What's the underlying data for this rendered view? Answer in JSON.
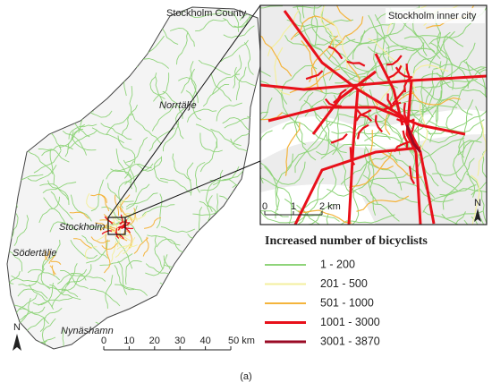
{
  "map": {
    "labels": {
      "county": "Stockholm County",
      "norrtalje": "Norrtälje",
      "stockholm": "Stockholm",
      "sodertalje": "Södertälje",
      "nynashamn": "Nynäshamn",
      "inset": "Stockholm inner city",
      "north": "N",
      "inset_north": "N"
    },
    "inset_scale": [
      "0",
      "1",
      "2 km"
    ],
    "scale": [
      "0",
      "10",
      "20",
      "30",
      "40",
      "50 km"
    ],
    "legend": {
      "title": "Increased number of bicyclists",
      "items": [
        {
          "label": "1 - 200",
          "color": "#8fd47a"
        },
        {
          "label": "201 - 500",
          "color": "#f3ef9e"
        },
        {
          "label": "501 - 1000",
          "color": "#f4b43c"
        },
        {
          "label": "1001 - 3000",
          "color": "#e8101a"
        },
        {
          "label": "3001 - 3870",
          "color": "#9a0a24"
        }
      ]
    },
    "caption": "(a)"
  }
}
